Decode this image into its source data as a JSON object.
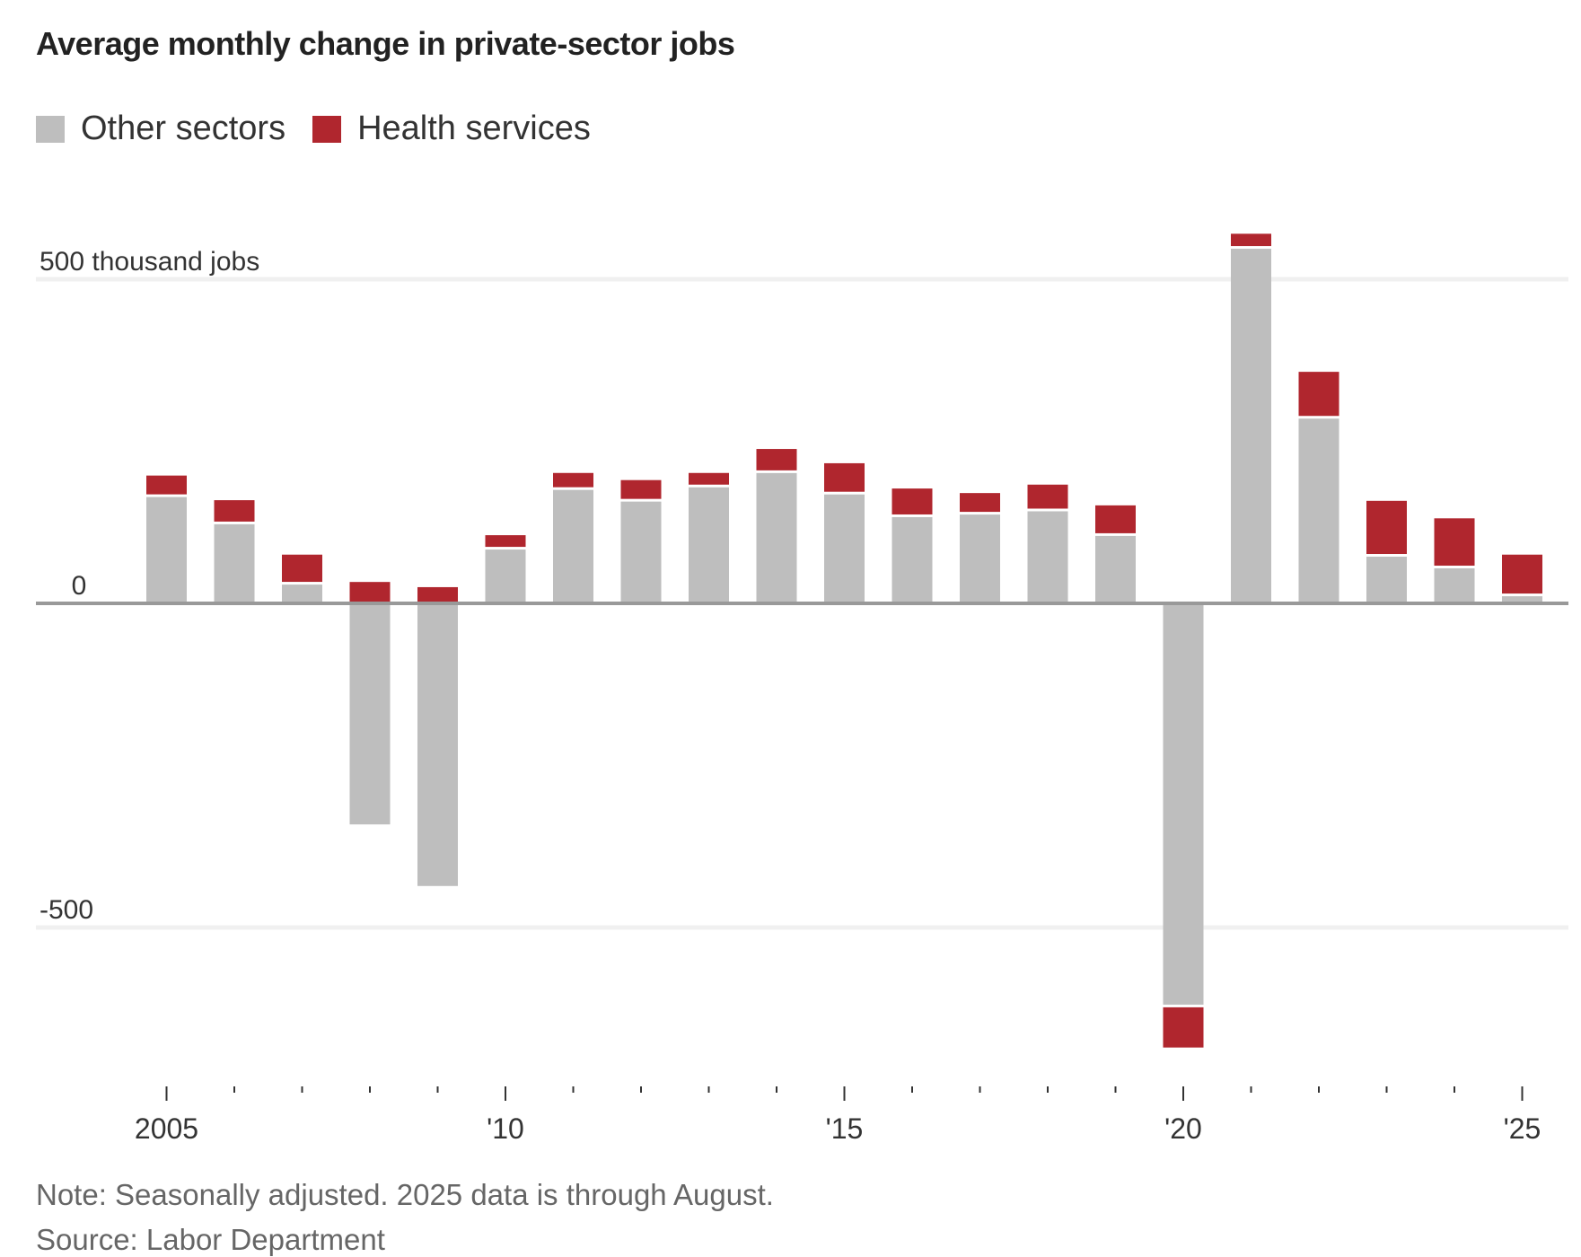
{
  "title": "Average monthly change in private-sector jobs",
  "legend": [
    {
      "label": "Other sectors",
      "color": "#bebebe",
      "icon": "gray-square-swatch"
    },
    {
      "label": "Health services",
      "color": "#b0262e",
      "icon": "red-square-swatch"
    }
  ],
  "note": "Note: Seasonally adjusted. 2025 data is through August.",
  "source": "Source: Labor Department",
  "chart_data": {
    "type": "bar",
    "stacked": true,
    "title": "Average monthly change in private-sector jobs",
    "xlabel": "",
    "ylabel": "thousand jobs",
    "ylim": [
      -700,
      600
    ],
    "grid": true,
    "legend_position": "top-left",
    "y_ticks": [
      {
        "value": 500,
        "label": "500 thousand jobs"
      },
      {
        "value": 0,
        "label": "0"
      },
      {
        "value": -500,
        "label": "-500"
      }
    ],
    "x_tick_labels": [
      {
        "year": 2005,
        "label": "2005"
      },
      {
        "year": 2010,
        "label": "'10"
      },
      {
        "year": 2015,
        "label": "'15"
      },
      {
        "year": 2020,
        "label": "'20"
      },
      {
        "year": 2025,
        "label": "'25"
      }
    ],
    "categories": [
      2005,
      2006,
      2007,
      2008,
      2009,
      2010,
      2011,
      2012,
      2013,
      2014,
      2015,
      2016,
      2017,
      2018,
      2019,
      2020,
      2021,
      2022,
      2023,
      2024,
      2025
    ],
    "series": [
      {
        "name": "Other sectors",
        "color": "#bebebe",
        "values": [
          164,
          122,
          29,
          -341,
          -436,
          83,
          175,
          157,
          179,
          201,
          168,
          133,
          137,
          142,
          104,
          -619,
          547,
          285,
          72,
          54,
          11
        ]
      },
      {
        "name": "Health services",
        "color": "#b0262e",
        "values": [
          29,
          33,
          42,
          33,
          25,
          18,
          22,
          29,
          18,
          33,
          44,
          40,
          29,
          37,
          43,
          -62,
          19,
          68,
          82,
          73,
          60
        ]
      }
    ]
  }
}
